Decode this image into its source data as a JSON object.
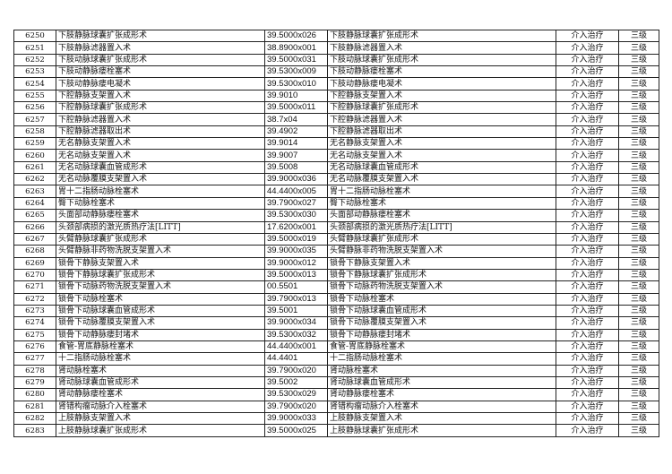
{
  "rows": [
    [
      "6250",
      "下肢静脉球囊扩张成形术",
      "39.5000x026",
      "下肢静脉球囊扩张成形术",
      "介入治疗",
      "三级"
    ],
    [
      "6251",
      "下肢静脉滤器置入术",
      "38.8900x001",
      "下肢静脉滤器置入术",
      "介入治疗",
      "三级"
    ],
    [
      "6252",
      "下肢动脉球囊扩张成形术",
      "39.5000x031",
      "下肢动脉球囊扩张成形术",
      "介入治疗",
      "三级"
    ],
    [
      "6253",
      "下肢动静脉瘘栓塞术",
      "39.5300x009",
      "下肢动静脉瘘栓塞术",
      "介入治疗",
      "三级"
    ],
    [
      "6254",
      "下肢动静脉瘘电凝术",
      "39.5300x010",
      "下肢动静脉瘘电凝术",
      "介入治疗",
      "三级"
    ],
    [
      "6255",
      "下腔静脉支架置入术",
      "39.9010",
      "下腔静脉支架置入术",
      "介入治疗",
      "三级"
    ],
    [
      "6256",
      "下腔静脉球囊扩张成形术",
      "39.5000x011",
      "下腔静脉球囊扩张成形术",
      "介入治疗",
      "三级"
    ],
    [
      "6257",
      "下腔静脉滤器置入术",
      "38.7x04",
      "下腔静脉滤器置入术",
      "介入治疗",
      "三级"
    ],
    [
      "6258",
      "下腔静脉滤器取出术",
      "39.4902",
      "下腔静脉滤器取出术",
      "介入治疗",
      "三级"
    ],
    [
      "6259",
      "无名静脉支架置入术",
      "39.9014",
      "无名静脉支架置入术",
      "介入治疗",
      "三级"
    ],
    [
      "6260",
      "无名动脉支架置入术",
      "39.9007",
      "无名动脉支架置入术",
      "介入治疗",
      "三级"
    ],
    [
      "6261",
      "无名动脉球囊血管成形术",
      "39.5008",
      "无名动脉球囊血管成形术",
      "介入治疗",
      "三级"
    ],
    [
      "6262",
      "无名动脉覆膜支架置入术",
      "39.9000x036",
      "无名动脉覆膜支架置入术",
      "介入治疗",
      "三级"
    ],
    [
      "6263",
      "胃十二指肠动脉栓塞术",
      "44.4400x005",
      "胃十二指肠动脉栓塞术",
      "介入治疗",
      "三级"
    ],
    [
      "6264",
      "臀下动脉栓塞术",
      "39.7900x027",
      "臀下动脉栓塞术",
      "介入治疗",
      "三级"
    ],
    [
      "6265",
      "头面部动静脉瘘栓塞术",
      "39.5300x030",
      "头面部动静脉瘘栓塞术",
      "介入治疗",
      "三级"
    ],
    [
      "6266",
      "头颈部病损的激光质热疗法[LITT]",
      "17.6200x001",
      "头颈部病损的激光质热疗法[LITT]",
      "介入治疗",
      "三级"
    ],
    [
      "6267",
      "头臂静脉球囊扩张成形术",
      "39.5000x019",
      "头臂静脉球囊扩张成形术",
      "介入治疗",
      "三级"
    ],
    [
      "6268",
      "头臂静脉非药物洗脱支架置入术",
      "39.9000x035",
      "头臂静脉非药物洗脱支架置入术",
      "介入治疗",
      "三级"
    ],
    [
      "6269",
      "锁骨下静脉支架置入术",
      "39.9000x012",
      "锁骨下静脉支架置入术",
      "介入治疗",
      "三级"
    ],
    [
      "6270",
      "锁骨下静脉球囊扩张成形术",
      "39.5000x013",
      "锁骨下静脉球囊扩张成形术",
      "介入治疗",
      "三级"
    ],
    [
      "6271",
      "锁骨下动脉药物洗脱支架置入术",
      "00.5501",
      "锁骨下动脉药物洗脱支架置入术",
      "介入治疗",
      "三级"
    ],
    [
      "6272",
      "锁骨下动脉栓塞术",
      "39.7900x013",
      "锁骨下动脉栓塞术",
      "介入治疗",
      "三级"
    ],
    [
      "6273",
      "锁骨下动脉球囊血管成形术",
      "39.5001",
      "锁骨下动脉球囊血管成形术",
      "介入治疗",
      "三级"
    ],
    [
      "6274",
      "锁骨下动脉覆膜支架置入术",
      "39.9000x034",
      "锁骨下动脉覆膜支架置入术",
      "介入治疗",
      "三级"
    ],
    [
      "6275",
      "锁骨下动静脉瘘封堵术",
      "39.5300x032",
      "锁骨下动静脉瘘封堵术",
      "介入治疗",
      "三级"
    ],
    [
      "6276",
      "食管-胃底静脉栓塞术",
      "44.4400x001",
      "食管-胃底静脉栓塞术",
      "介入治疗",
      "三级"
    ],
    [
      "6277",
      "十二指肠动脉栓塞术",
      "44.4401",
      "十二指肠动脉栓塞术",
      "介入治疗",
      "三级"
    ],
    [
      "6278",
      "肾动脉栓塞术",
      "39.7900x020",
      "肾动脉栓塞术",
      "介入治疗",
      "三级"
    ],
    [
      "6279",
      "肾动脉球囊血管成形术",
      "39.5002",
      "肾动脉球囊血管成形术",
      "介入治疗",
      "三级"
    ],
    [
      "6280",
      "肾动静脉瘘栓塞术",
      "39.5300x029",
      "肾动静脉瘘栓塞术",
      "介入治疗",
      "三级"
    ],
    [
      "6281",
      "肾错构瘤动脉介入栓塞术",
      "39.7900x020",
      "肾错构瘤动脉介入栓塞术",
      "介入治疗",
      "三级"
    ],
    [
      "6282",
      "上肢静脉支架置入术",
      "39.9000x033",
      "上肢静脉支架置入术",
      "介入治疗",
      "三级"
    ],
    [
      "6283",
      "上肢静脉球囊扩张成形术",
      "39.5000x025",
      "上肢静脉球囊扩张成形术",
      "介入治疗",
      "三级"
    ]
  ]
}
